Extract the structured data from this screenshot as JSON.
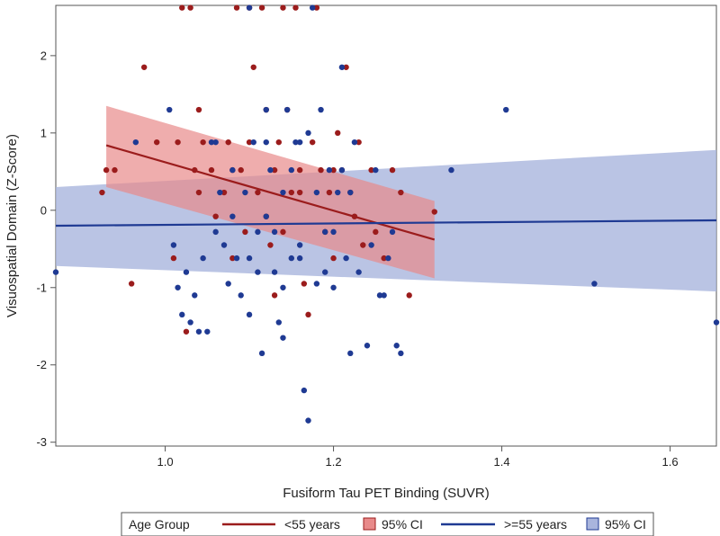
{
  "chart_data": {
    "type": "scatter",
    "xlabel": "Fusiform Tau PET Binding (SUVR)",
    "ylabel": "Visuospatial Domain (Z-Score)",
    "xlim": [
      0.87,
      1.655
    ],
    "ylim": [
      -3.05,
      2.65
    ],
    "x_ticks": [
      1.0,
      1.2,
      1.4,
      1.6
    ],
    "x_tick_labels": [
      "1.0",
      "1.2",
      "1.4",
      "1.6"
    ],
    "y_ticks": [
      -3,
      -2,
      -1,
      0,
      1,
      2
    ],
    "y_tick_labels": [
      "-3",
      "-2",
      "-1",
      "0",
      "1",
      "2"
    ],
    "grid": false,
    "legend": {
      "position": "bottom",
      "title": "Age Group",
      "entries": [
        {
          "label": "<55 years",
          "kind": "line",
          "color": "#9b1c1c"
        },
        {
          "label": "95% CI",
          "kind": "band",
          "color": "#e88a8a"
        },
        {
          "label": ">=55 years",
          "kind": "line",
          "color": "#1f3a93"
        },
        {
          "label": "95% CI",
          "kind": "band",
          "color": "#a9b5dd"
        }
      ]
    },
    "series": [
      {
        "name": "<55 years",
        "color": "#9b1c1c",
        "fit": {
          "x": [
            0.93,
            1.32
          ],
          "y": [
            0.84,
            -0.38
          ]
        },
        "ci_band": {
          "x": [
            0.93,
            1.32
          ],
          "upper": [
            1.35,
            0.12
          ],
          "lower": [
            0.3,
            -0.88
          ]
        },
        "points": [
          [
            0.925,
            0.23
          ],
          [
            0.93,
            0.52
          ],
          [
            0.94,
            0.52
          ],
          [
            0.96,
            -0.95
          ],
          [
            0.975,
            1.85
          ],
          [
            0.99,
            0.88
          ],
          [
            1.01,
            -0.62
          ],
          [
            1.015,
            0.88
          ],
          [
            1.02,
            2.62
          ],
          [
            1.025,
            -1.57
          ],
          [
            1.03,
            2.62
          ],
          [
            1.035,
            0.52
          ],
          [
            1.04,
            1.3
          ],
          [
            1.045,
            0.88
          ],
          [
            1.04,
            0.23
          ],
          [
            1.055,
            0.52
          ],
          [
            1.06,
            -0.08
          ],
          [
            1.07,
            0.23
          ],
          [
            1.075,
            0.88
          ],
          [
            1.08,
            -0.62
          ],
          [
            1.085,
            2.62
          ],
          [
            1.09,
            0.52
          ],
          [
            1.095,
            -0.28
          ],
          [
            1.1,
            0.88
          ],
          [
            1.105,
            1.85
          ],
          [
            1.11,
            0.23
          ],
          [
            1.115,
            2.62
          ],
          [
            1.12,
            1.3
          ],
          [
            1.125,
            -0.45
          ],
          [
            1.13,
            0.52
          ],
          [
            1.135,
            0.88
          ],
          [
            1.14,
            2.62
          ],
          [
            1.145,
            1.3
          ],
          [
            1.15,
            0.23
          ],
          [
            1.155,
            2.62
          ],
          [
            1.16,
            0.52
          ],
          [
            1.165,
            -0.95
          ],
          [
            1.17,
            -1.35
          ],
          [
            1.175,
            0.88
          ],
          [
            1.18,
            2.62
          ],
          [
            1.185,
            0.52
          ],
          [
            1.19,
            -0.28
          ],
          [
            1.195,
            0.23
          ],
          [
            1.2,
            -0.62
          ],
          [
            1.205,
            1.0
          ],
          [
            1.21,
            0.52
          ],
          [
            1.215,
            1.85
          ],
          [
            1.22,
            0.23
          ],
          [
            1.225,
            -0.08
          ],
          [
            1.23,
            0.88
          ],
          [
            1.235,
            -0.45
          ],
          [
            1.245,
            0.52
          ],
          [
            1.25,
            -0.28
          ],
          [
            1.26,
            -0.62
          ],
          [
            1.27,
            0.52
          ],
          [
            1.28,
            0.23
          ],
          [
            1.29,
            -1.1
          ],
          [
            1.32,
            -0.02
          ],
          [
            1.1,
            2.62
          ],
          [
            1.13,
            -1.1
          ],
          [
            1.08,
            0.52
          ],
          [
            1.12,
            -0.08
          ],
          [
            1.16,
            0.23
          ],
          [
            1.2,
            0.52
          ],
          [
            1.14,
            -0.28
          ]
        ]
      },
      {
        "name": ">=55 years",
        "color": "#1f3a93",
        "fit": {
          "x": [
            0.87,
            1.655
          ],
          "y": [
            -0.2,
            -0.13
          ]
        },
        "ci_band": {
          "x": [
            0.87,
            1.655
          ],
          "upper": [
            0.3,
            0.78
          ],
          "lower": [
            -0.72,
            -1.05
          ]
        },
        "points": [
          [
            0.87,
            -0.8
          ],
          [
            0.965,
            0.88
          ],
          [
            1.005,
            1.3
          ],
          [
            1.01,
            -0.45
          ],
          [
            1.015,
            -1.0
          ],
          [
            1.02,
            -1.35
          ],
          [
            1.025,
            -0.8
          ],
          [
            1.03,
            -1.45
          ],
          [
            1.035,
            -1.1
          ],
          [
            1.04,
            -1.57
          ],
          [
            1.045,
            -0.62
          ],
          [
            1.05,
            -1.57
          ],
          [
            1.055,
            0.88
          ],
          [
            1.06,
            -0.28
          ],
          [
            1.065,
            0.23
          ],
          [
            1.07,
            -0.45
          ],
          [
            1.075,
            -0.95
          ],
          [
            1.08,
            0.52
          ],
          [
            1.085,
            -0.62
          ],
          [
            1.09,
            -1.1
          ],
          [
            1.095,
            0.23
          ],
          [
            1.1,
            -1.35
          ],
          [
            1.105,
            0.88
          ],
          [
            1.11,
            -0.8
          ],
          [
            1.115,
            -1.85
          ],
          [
            1.12,
            1.3
          ],
          [
            1.125,
            0.52
          ],
          [
            1.13,
            -0.28
          ],
          [
            1.135,
            -1.45
          ],
          [
            1.14,
            -1.65
          ],
          [
            1.145,
            1.3
          ],
          [
            1.15,
            -0.62
          ],
          [
            1.155,
            0.88
          ],
          [
            1.16,
            -0.45
          ],
          [
            1.165,
            -2.33
          ],
          [
            1.17,
            -2.72
          ],
          [
            1.175,
            2.62
          ],
          [
            1.18,
            -0.95
          ],
          [
            1.185,
            1.3
          ],
          [
            1.19,
            -0.28
          ],
          [
            1.195,
            0.52
          ],
          [
            1.2,
            -1.0
          ],
          [
            1.205,
            0.23
          ],
          [
            1.21,
            1.85
          ],
          [
            1.215,
            -0.62
          ],
          [
            1.22,
            -1.85
          ],
          [
            1.225,
            0.88
          ],
          [
            1.23,
            -0.8
          ],
          [
            1.24,
            -1.75
          ],
          [
            1.245,
            -0.45
          ],
          [
            1.25,
            0.52
          ],
          [
            1.255,
            -1.1
          ],
          [
            1.26,
            -1.1
          ],
          [
            1.265,
            -0.62
          ],
          [
            1.27,
            -0.28
          ],
          [
            1.275,
            -1.75
          ],
          [
            1.28,
            -1.85
          ],
          [
            1.34,
            0.52
          ],
          [
            1.405,
            1.3
          ],
          [
            1.51,
            -0.95
          ],
          [
            1.655,
            -1.45
          ],
          [
            1.1,
            2.62
          ],
          [
            1.12,
            -0.08
          ],
          [
            1.14,
            0.23
          ],
          [
            1.16,
            -0.62
          ],
          [
            1.18,
            0.23
          ],
          [
            1.11,
            -0.28
          ],
          [
            1.13,
            -0.8
          ],
          [
            1.15,
            0.52
          ],
          [
            1.17,
            1.0
          ],
          [
            1.19,
            -0.8
          ],
          [
            1.21,
            0.52
          ],
          [
            1.12,
            0.88
          ],
          [
            1.14,
            -1.0
          ],
          [
            1.16,
            0.88
          ],
          [
            1.2,
            -0.28
          ],
          [
            1.06,
            0.88
          ],
          [
            1.08,
            -0.08
          ],
          [
            1.1,
            -0.62
          ],
          [
            1.22,
            0.23
          ]
        ]
      }
    ]
  }
}
